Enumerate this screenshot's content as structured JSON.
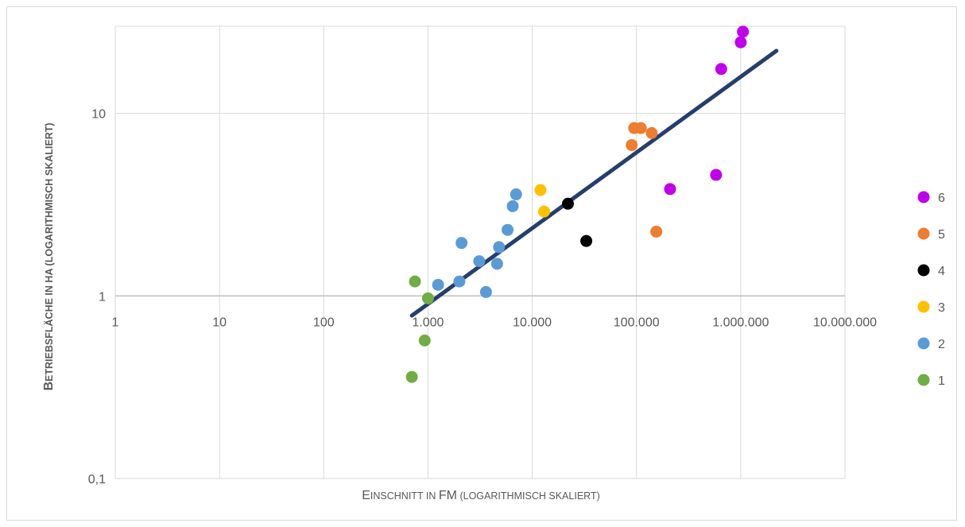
{
  "chart_data": {
    "type": "scatter",
    "xlabel": "Einschnitt in FM (logarithmisch skaliert)",
    "ylabel": "Betriebsfläche in ha (logarithmisch skaliert)",
    "xscale": "log",
    "yscale": "log",
    "xlim": [
      1,
      10000000
    ],
    "ylim": [
      0.1,
      30
    ],
    "x_ticks": [
      1,
      10,
      100,
      1000,
      10000,
      100000,
      1000000,
      10000000
    ],
    "x_tick_labels": [
      "1",
      "10",
      "100",
      "1.000",
      "10.000",
      "100.000",
      "1.000.000",
      "10.000.000"
    ],
    "y_ticks": [
      0.1,
      1,
      10
    ],
    "y_tick_labels": [
      "0,1",
      "1",
      "10"
    ],
    "grid": true,
    "legend_position": "right",
    "series": [
      {
        "name": "6",
        "color": "#c000e8",
        "points": [
          [
            1050000,
            28
          ],
          [
            1000000,
            24.5
          ],
          [
            650000,
            17.5
          ],
          [
            580000,
            4.6
          ],
          [
            210000,
            3.85
          ]
        ]
      },
      {
        "name": "5",
        "color": "#ed7d31",
        "points": [
          [
            95000,
            8.3
          ],
          [
            110000,
            8.3
          ],
          [
            140000,
            7.8
          ],
          [
            90000,
            6.7
          ],
          [
            155000,
            2.25
          ]
        ]
      },
      {
        "name": "4",
        "color": "#000000",
        "points": [
          [
            22000,
            3.2
          ],
          [
            33000,
            2.0
          ]
        ]
      },
      {
        "name": "3",
        "color": "#ffc000",
        "points": [
          [
            12000,
            3.8
          ],
          [
            13000,
            2.9
          ]
        ]
      },
      {
        "name": "2",
        "color": "#5b9bd5",
        "points": [
          [
            7000,
            3.6
          ],
          [
            6500,
            3.1
          ],
          [
            5800,
            2.3
          ],
          [
            4800,
            1.85
          ],
          [
            4600,
            1.5
          ],
          [
            3100,
            1.55
          ],
          [
            2100,
            1.95
          ],
          [
            2000,
            1.2
          ],
          [
            1250,
            1.15
          ],
          [
            3600,
            1.05
          ]
        ]
      },
      {
        "name": "1",
        "color": "#70ad47",
        "points": [
          [
            750,
            1.2
          ],
          [
            1000,
            0.97
          ],
          [
            930,
            0.57
          ],
          [
            700,
            0.36
          ]
        ]
      }
    ],
    "trendline": {
      "color": "#253e6d",
      "from": [
        700,
        0.78
      ],
      "to": [
        2200000,
        22
      ]
    }
  }
}
